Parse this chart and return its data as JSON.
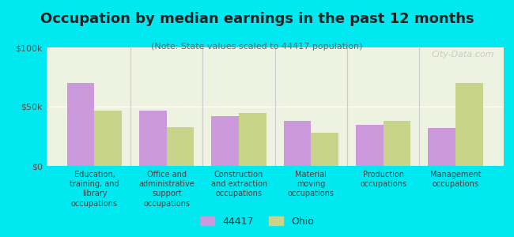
{
  "title": "Occupation by median earnings in the past 12 months",
  "subtitle": "(Note: State values scaled to 44417 population)",
  "background_color": "#00e8f0",
  "plot_bg_color": "#eef2e0",
  "categories": [
    "Education,\ntraining, and\nlibrary\noccupations",
    "Office and\nadministrative\nsupport\noccupations",
    "Construction\nand extraction\noccupations",
    "Material\nmoving\noccupations",
    "Production\noccupations",
    "Management\noccupations"
  ],
  "values_44417": [
    70000,
    47000,
    42000,
    38000,
    35000,
    32000
  ],
  "values_ohio": [
    47000,
    33000,
    45000,
    28000,
    38000,
    70000
  ],
  "color_44417": "#cc99dd",
  "color_ohio": "#c8d48a",
  "ylim": [
    0,
    100000
  ],
  "yticks": [
    0,
    50000,
    100000
  ],
  "ytick_labels": [
    "$0",
    "$50k",
    "$100k"
  ],
  "legend_label_44417": "44417",
  "legend_label_ohio": "Ohio",
  "watermark": "City-Data.com",
  "bar_width": 0.38
}
